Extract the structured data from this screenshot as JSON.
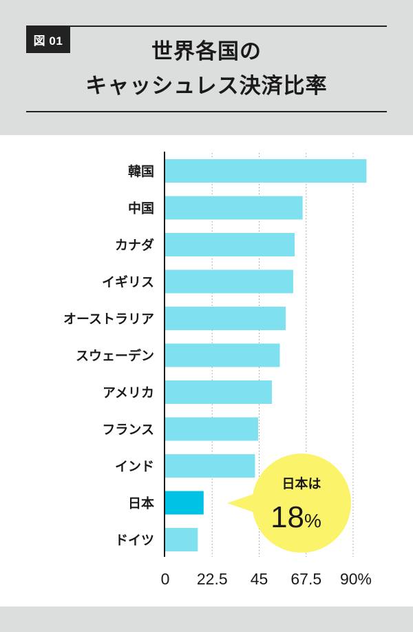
{
  "figure_tag": "図 01",
  "title_line1": "世界各国の",
  "title_line2": "キャッシュレス決済比率",
  "callout": {
    "label": "日本は",
    "value": "18",
    "unit": "%"
  },
  "colors": {
    "bar": "#7fe0f0",
    "highlight": "#00c2e4",
    "bubble": "#fbf46b",
    "band": "#dcdedd"
  },
  "chart_data": {
    "type": "bar",
    "orientation": "horizontal",
    "title": "世界各国のキャッシュレス決済比率",
    "categories": [
      "韓国",
      "中国",
      "カナダ",
      "イギリス",
      "オーストラリア",
      "スウェーデン",
      "アメリカ",
      "フランス",
      "インド",
      "日本",
      "ドイツ"
    ],
    "values": [
      96.4,
      65.8,
      62.0,
      61.3,
      57.7,
      54.9,
      51.1,
      44.5,
      43.0,
      18.4,
      15.6
    ],
    "highlight_category": "日本",
    "x_ticks": [
      0,
      22.5,
      45,
      67.5,
      90
    ],
    "x_tick_labels": [
      "0",
      "22.5",
      "45",
      "67.5",
      "90%"
    ],
    "xlim": [
      0,
      90
    ],
    "xlabel": "",
    "ylabel": "",
    "grid": "vertical dotted"
  }
}
